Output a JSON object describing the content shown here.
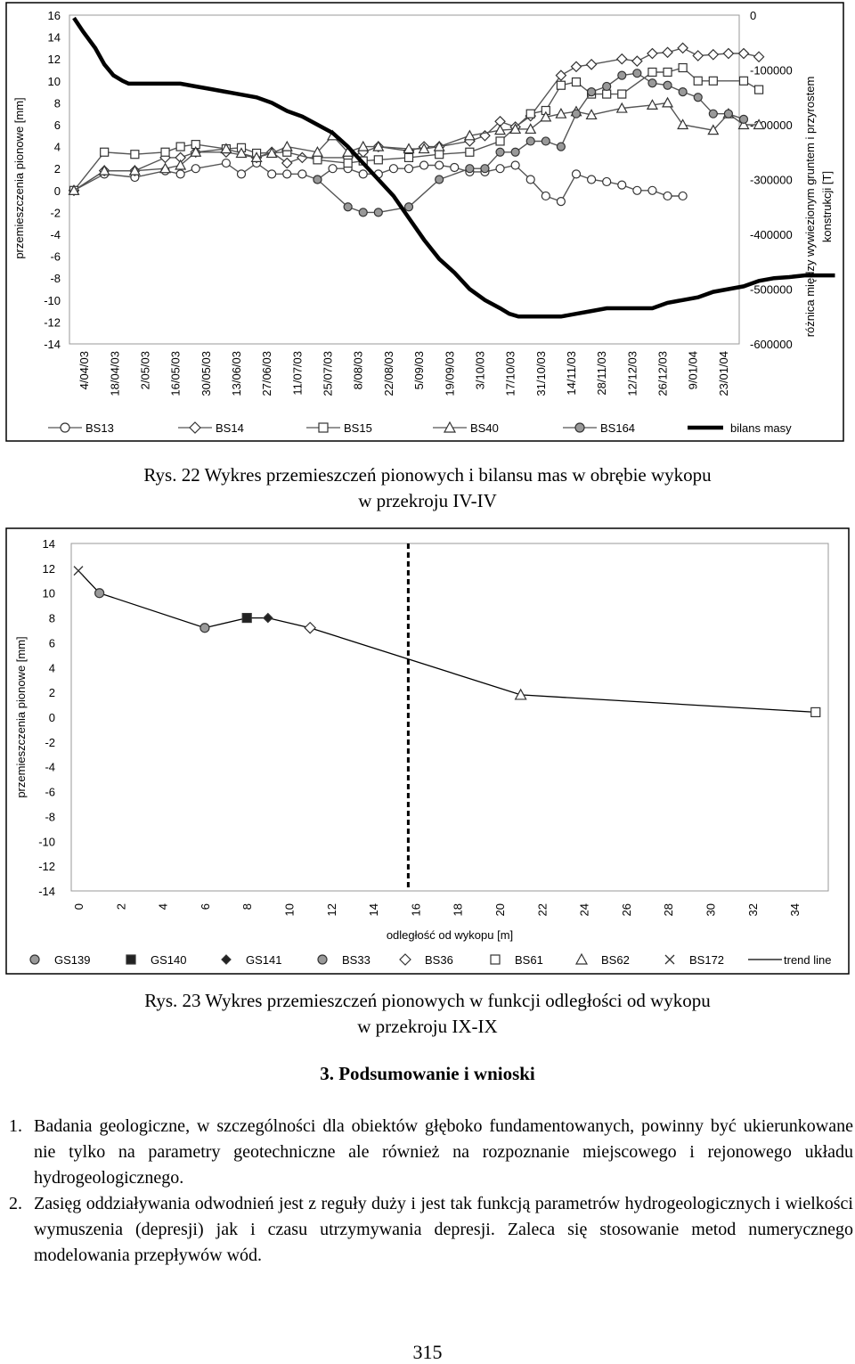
{
  "chart_data": [
    {
      "type": "line",
      "title": "",
      "ylabel": "przemieszczenia pionowe [mm]",
      "y2label": "różnica między wywiezionym gruntem i przyrostem konstrukcji [T]",
      "ylim": [
        -14,
        16
      ],
      "y2lim": [
        -600000,
        0
      ],
      "yticks": [
        "16",
        "14",
        "12",
        "10",
        "8",
        "6",
        "4",
        "2",
        "0",
        "-2",
        "-4",
        "-6",
        "-8",
        "-10",
        "-12",
        "-14"
      ],
      "y2ticks": [
        "0",
        "-100000",
        "-200000",
        "-300000",
        "-400000",
        "-500000",
        "-600000"
      ],
      "categories": [
        "4/04/03",
        "18/04/03",
        "2/05/03",
        "16/05/03",
        "30/05/03",
        "13/06/03",
        "27/06/03",
        "11/07/03",
        "25/07/03",
        "8/08/03",
        "22/08/03",
        "5/09/03",
        "19/09/03",
        "3/10/03",
        "17/10/03",
        "31/10/03",
        "14/11/03",
        "28/11/03",
        "12/12/03",
        "26/12/03",
        "9/01/04",
        "23/01/04"
      ],
      "series": [
        {
          "name": "BS13",
          "marker": "circle-open",
          "points": [
            [
              0,
              0
            ],
            [
              1,
              1.5
            ],
            [
              2,
              1.2
            ],
            [
              3,
              1.8
            ],
            [
              3.5,
              1.5
            ],
            [
              4,
              2
            ],
            [
              5,
              2.5
            ],
            [
              5.5,
              1.5
            ],
            [
              6,
              2.5
            ],
            [
              6.5,
              1.5
            ],
            [
              7,
              1.5
            ],
            [
              7.5,
              1.5
            ],
            [
              8,
              1
            ],
            [
              8.5,
              2
            ],
            [
              9,
              2
            ],
            [
              9.5,
              1.5
            ],
            [
              10,
              1.5
            ],
            [
              10.5,
              2
            ],
            [
              11,
              2
            ],
            [
              11.5,
              2.3
            ],
            [
              12,
              2.3
            ],
            [
              12.5,
              2.1
            ],
            [
              13,
              1.7
            ],
            [
              13.5,
              1.7
            ],
            [
              14,
              2
            ],
            [
              14.5,
              2.3
            ],
            [
              15,
              1
            ],
            [
              15.5,
              -0.5
            ],
            [
              16,
              -1
            ],
            [
              16.5,
              1.5
            ],
            [
              17,
              1
            ],
            [
              17.5,
              0.8
            ],
            [
              18,
              0.5
            ],
            [
              18.5,
              0
            ],
            [
              19,
              0
            ],
            [
              19.5,
              -0.5
            ],
            [
              20,
              -0.5
            ]
          ]
        },
        {
          "name": "BS14",
          "marker": "diamond-open",
          "points": [
            [
              0,
              0
            ],
            [
              1,
              1.8
            ],
            [
              2,
              1.8
            ],
            [
              3,
              3
            ],
            [
              3.5,
              3
            ],
            [
              4,
              3.5
            ],
            [
              5,
              3.5
            ],
            [
              6,
              3
            ],
            [
              6.5,
              3.5
            ],
            [
              7,
              2.5
            ],
            [
              7.5,
              3
            ],
            [
              8,
              3
            ],
            [
              9,
              3
            ],
            [
              9.5,
              3.5
            ],
            [
              10,
              4
            ],
            [
              11,
              3.6
            ],
            [
              11.5,
              4
            ],
            [
              12,
              4
            ],
            [
              13,
              4.5
            ],
            [
              13.5,
              5
            ],
            [
              14,
              6.3
            ],
            [
              14.5,
              5.8
            ],
            [
              15,
              6.8
            ],
            [
              16,
              10.5
            ],
            [
              16.5,
              11.3
            ],
            [
              17,
              11.5
            ],
            [
              18,
              12
            ],
            [
              18.5,
              11.8
            ],
            [
              19,
              12.5
            ],
            [
              19.5,
              12.6
            ],
            [
              20,
              13
            ],
            [
              20.5,
              12.3
            ],
            [
              21,
              12.4
            ],
            [
              21.5,
              12.5
            ],
            [
              22,
              12.5
            ],
            [
              22.5,
              12.2
            ]
          ]
        },
        {
          "name": "BS15",
          "marker": "square-open",
          "points": [
            [
              0,
              0
            ],
            [
              1,
              3.5
            ],
            [
              2,
              3.3
            ],
            [
              3,
              3.5
            ],
            [
              3.5,
              4
            ],
            [
              4,
              4.2
            ],
            [
              5,
              3.8
            ],
            [
              5.5,
              3.9
            ],
            [
              6,
              3.4
            ],
            [
              7,
              3.5
            ],
            [
              8,
              2.8
            ],
            [
              9,
              2.5
            ],
            [
              9.5,
              2.7
            ],
            [
              10,
              2.8
            ],
            [
              11,
              3
            ],
            [
              12,
              3.3
            ],
            [
              13,
              3.5
            ],
            [
              14,
              4.5
            ],
            [
              15,
              7
            ],
            [
              15.5,
              7.3
            ],
            [
              16,
              9.6
            ],
            [
              16.5,
              9.9
            ],
            [
              17,
              8.8
            ],
            [
              17.5,
              8.8
            ],
            [
              18,
              8.8
            ],
            [
              19,
              10.8
            ],
            [
              19.5,
              10.8
            ],
            [
              20,
              11.2
            ],
            [
              20.5,
              10
            ],
            [
              21,
              10
            ],
            [
              22,
              10
            ],
            [
              22.5,
              9.2
            ]
          ]
        },
        {
          "name": "BS40",
          "marker": "triangle-open",
          "points": [
            [
              0,
              0
            ],
            [
              1,
              1.8
            ],
            [
              2,
              1.8
            ],
            [
              3,
              2
            ],
            [
              3.5,
              2.3
            ],
            [
              4,
              3.5
            ],
            [
              5,
              3.8
            ],
            [
              5.5,
              3.4
            ],
            [
              6,
              3
            ],
            [
              6.5,
              3.4
            ],
            [
              7,
              4
            ],
            [
              8,
              3.5
            ],
            [
              8.5,
              5
            ],
            [
              9,
              3.5
            ],
            [
              9.5,
              4
            ],
            [
              10,
              4
            ],
            [
              11,
              3.8
            ],
            [
              11.5,
              3.8
            ],
            [
              12,
              4
            ],
            [
              13,
              5
            ],
            [
              14,
              5.5
            ],
            [
              14.5,
              5.6
            ],
            [
              15,
              5.6
            ],
            [
              15.5,
              6.7
            ],
            [
              16,
              7
            ],
            [
              16.5,
              7.2
            ],
            [
              17,
              6.9
            ],
            [
              18,
              7.5
            ],
            [
              19,
              7.8
            ],
            [
              19.5,
              8
            ],
            [
              20,
              6
            ],
            [
              21,
              5.5
            ],
            [
              21.5,
              7
            ],
            [
              22,
              6
            ],
            [
              22.5,
              6
            ]
          ]
        },
        {
          "name": "BS164",
          "marker": "circle-filled",
          "points": [
            [
              8,
              1
            ],
            [
              9,
              -1.5
            ],
            [
              9.5,
              -2
            ],
            [
              10,
              -2
            ],
            [
              11,
              -1.5
            ],
            [
              12,
              1
            ],
            [
              13,
              2
            ],
            [
              13.5,
              2
            ],
            [
              14,
              3.5
            ],
            [
              14.5,
              3.5
            ],
            [
              15,
              4.5
            ],
            [
              15.5,
              4.5
            ],
            [
              16,
              4
            ],
            [
              16.5,
              7
            ],
            [
              17,
              9
            ],
            [
              17.5,
              9.5
            ],
            [
              18,
              10.5
            ],
            [
              18.5,
              10.7
            ],
            [
              19,
              9.8
            ],
            [
              19.5,
              9.6
            ],
            [
              20,
              9
            ],
            [
              20.5,
              8.5
            ],
            [
              21,
              7
            ],
            [
              21.5,
              7
            ],
            [
              22,
              6.5
            ]
          ]
        },
        {
          "name": "bilans masy",
          "marker": "none",
          "axis": "y2",
          "points": [
            [
              0,
              -5000
            ],
            [
              0.3,
              -30000
            ],
            [
              0.7,
              -60000
            ],
            [
              1,
              -90000
            ],
            [
              1.3,
              -110000
            ],
            [
              1.6,
              -120000
            ],
            [
              1.8,
              -125000
            ],
            [
              2,
              -125000
            ],
            [
              3,
              -125000
            ],
            [
              3.5,
              -125000
            ],
            [
              4,
              -130000
            ],
            [
              4.5,
              -135000
            ],
            [
              5,
              -140000
            ],
            [
              5.5,
              -145000
            ],
            [
              6,
              -150000
            ],
            [
              6.5,
              -160000
            ],
            [
              7,
              -175000
            ],
            [
              7.5,
              -185000
            ],
            [
              8,
              -200000
            ],
            [
              8.5,
              -215000
            ],
            [
              9,
              -240000
            ],
            [
              9.5,
              -270000
            ],
            [
              10,
              -300000
            ],
            [
              10.5,
              -330000
            ],
            [
              11,
              -370000
            ],
            [
              11.5,
              -410000
            ],
            [
              12,
              -445000
            ],
            [
              12.5,
              -470000
            ],
            [
              13,
              -500000
            ],
            [
              13.5,
              -520000
            ],
            [
              14,
              -535000
            ],
            [
              14.3,
              -545000
            ],
            [
              14.6,
              -550000
            ],
            [
              15,
              -550000
            ],
            [
              15.5,
              -550000
            ],
            [
              16,
              -550000
            ],
            [
              16.5,
              -545000
            ],
            [
              17,
              -540000
            ],
            [
              17.5,
              -535000
            ],
            [
              18,
              -535000
            ],
            [
              18.5,
              -535000
            ],
            [
              19,
              -535000
            ],
            [
              19.5,
              -525000
            ],
            [
              20,
              -520000
            ],
            [
              20.5,
              -515000
            ],
            [
              21,
              -505000
            ],
            [
              21.5,
              -500000
            ],
            [
              22,
              -495000
            ],
            [
              22.5,
              -485000
            ],
            [
              23,
              -480000
            ],
            [
              23.5,
              -478000
            ],
            [
              24,
              -475000
            ],
            [
              25,
              -475000
            ]
          ]
        }
      ],
      "legend": [
        "BS13",
        "BS14",
        "BS15",
        "BS40",
        "BS164",
        "bilans masy"
      ]
    },
    {
      "type": "scatter",
      "title": "",
      "xlabel": "odległość od wykopu [m]",
      "ylabel": "przemieszczenia pionowe [mm]",
      "xlim": [
        0,
        36
      ],
      "ylim": [
        -14,
        14
      ],
      "xticks": [
        "0",
        "2",
        "4",
        "6",
        "8",
        "10",
        "12",
        "14",
        "16",
        "18",
        "20",
        "22",
        "24",
        "26",
        "28",
        "30",
        "32",
        "34"
      ],
      "yticks": [
        "14",
        "12",
        "10",
        "8",
        "6",
        "4",
        "2",
        "0",
        "-2",
        "-4",
        "-6",
        "-8",
        "-10",
        "-12",
        "-14"
      ],
      "dashed_line_x": 16,
      "points": [
        {
          "name": "BS172",
          "marker": "x",
          "x": 0,
          "y": 11.8
        },
        {
          "name": "GS139",
          "marker": "circle-filled",
          "x": 1,
          "y": 10
        },
        {
          "name": "GS139",
          "marker": "circle-filled",
          "x": 6,
          "y": 7.2
        },
        {
          "name": "GS140",
          "marker": "square-filled",
          "x": 8,
          "y": 8
        },
        {
          "name": "GS141",
          "marker": "diamond-filled",
          "x": 9,
          "y": 8
        },
        {
          "name": "BS36",
          "marker": "diamond-open",
          "x": 11,
          "y": 7.2
        },
        {
          "name": "BS62",
          "marker": "triangle-open",
          "x": 21,
          "y": 1.8
        },
        {
          "name": "BS61",
          "marker": "square-open",
          "x": 35,
          "y": 0.4
        }
      ],
      "trend_line": [
        [
          0,
          11.8
        ],
        [
          1,
          10
        ],
        [
          6,
          7.2
        ],
        [
          8,
          8
        ],
        [
          9,
          8
        ],
        [
          11,
          7.2
        ],
        [
          21,
          1.8
        ],
        [
          35,
          0.4
        ]
      ],
      "legend": [
        "GS139",
        "GS140",
        "GS141",
        "BS33",
        "BS36",
        "BS61",
        "BS62",
        "BS172",
        "trend line"
      ]
    }
  ],
  "caption1": {
    "line1": "Rys. 22 Wykres przemieszczeń pionowych i bilansu mas w obrębie wykopu",
    "line2": "w przekroju IV-IV"
  },
  "caption2": {
    "line1": "Rys. 23 Wykres przemieszczeń pionowych w funkcji odległości od wykopu",
    "line2": "w przekroju IX-IX"
  },
  "section_title": "3. Podsumowanie i wnioski",
  "items": [
    {
      "num": "1.",
      "text": "Badania geologiczne, w szczególności dla obiektów głęboko fundamentowanych, powinny być ukierunkowane nie tylko na parametry geotechniczne ale również na rozpoznanie miejscowego i rejonowego układu hydrogeologicznego."
    },
    {
      "num": "2.",
      "text": "Zasięg oddziaływania odwodnień jest z reguły duży i jest tak funkcją parametrów hydrogeologicznych i wielkości wymuszenia (depresji) jak i czasu utrzymywania depresji. Zaleca się stosowanie metod numerycznego modelowania przepływów wód."
    }
  ],
  "page_number": "315"
}
